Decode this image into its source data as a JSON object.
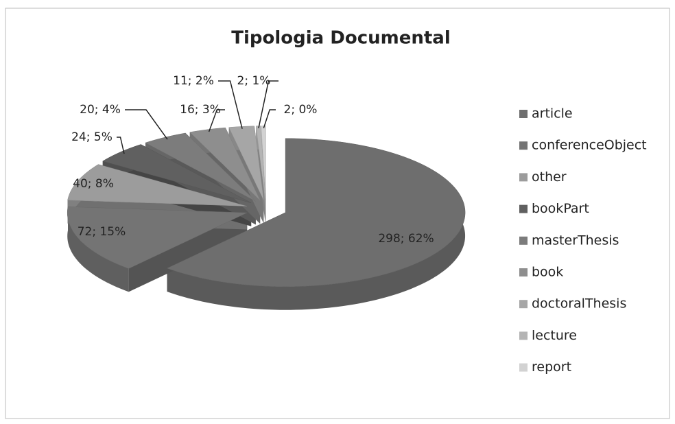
{
  "chart_data": {
    "type": "pie",
    "title": "Tipologia Documental",
    "categories": [
      "article",
      "conferenceObject",
      "other",
      "bookPart",
      "masterThesis",
      "book",
      "doctoralThesis",
      "lecture",
      "report"
    ],
    "values": [
      298,
      72,
      40,
      24,
      20,
      16,
      11,
      2,
      2
    ],
    "value_labels": [
      "298; 62%",
      "72; 15%",
      "40; 8%",
      "24; 5%",
      "20; 4%",
      "16; 3%",
      "11; 2%",
      "2; 1%",
      "2; 0%"
    ],
    "colors": [
      "#6e6e6e",
      "#747474",
      "#9c9c9c",
      "#606060",
      "#7c7c7c",
      "#8e8e8e",
      "#a6a6a6",
      "#b4b4b4",
      "#d2d2d2"
    ],
    "legend": "right"
  }
}
